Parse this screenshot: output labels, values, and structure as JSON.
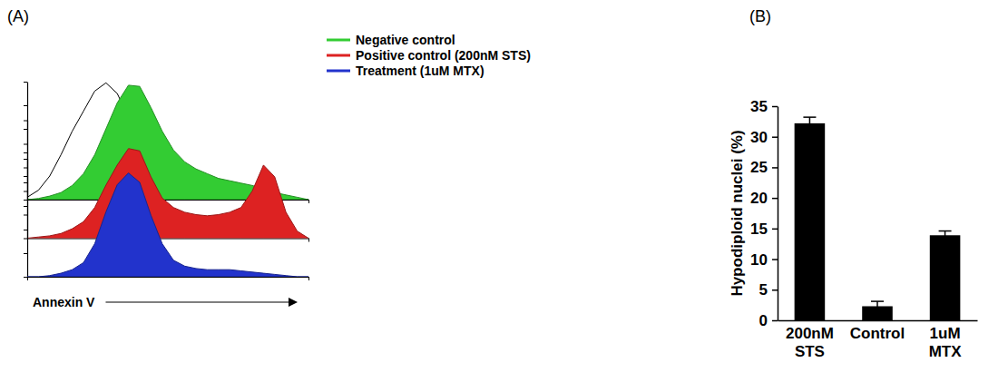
{
  "chart_data": [
    {
      "type": "area",
      "title": "(A)",
      "xlabel": "Annexin V",
      "x": [
        0,
        4,
        8,
        12,
        16,
        20,
        24,
        28,
        32,
        36,
        40,
        44,
        48,
        52,
        56,
        60,
        64,
        68,
        72,
        76,
        80,
        84,
        88,
        92,
        96,
        100
      ],
      "xlim": [
        0,
        100
      ],
      "xticks": [
        0,
        100
      ],
      "ylim": [
        0,
        100
      ],
      "yticks": [
        0,
        20,
        40,
        60,
        80,
        100
      ],
      "tick_labels": false,
      "legend": "right",
      "series": [
        {
          "color": "#ffffff",
          "values": [
            2,
            8,
            20,
            38,
            58,
            75,
            92,
            99,
            90,
            70,
            48,
            30,
            16,
            8,
            4,
            2,
            1,
            0,
            0,
            0,
            0,
            0,
            0,
            0,
            0,
            0
          ]
        },
        {
          "name": "Negative control",
          "color": "#33cc33",
          "values": [
            0,
            1,
            3,
            6,
            12,
            22,
            38,
            60,
            82,
            97,
            96,
            78,
            58,
            42,
            32,
            26,
            22,
            18,
            16,
            14,
            12,
            9,
            6,
            4,
            2,
            0
          ]
        },
        {
          "name": "Positive control (200nM STS)",
          "color": "#dd2222",
          "values": [
            0,
            1,
            2,
            4,
            8,
            14,
            26,
            45,
            62,
            76,
            74,
            52,
            34,
            26,
            22,
            20,
            19,
            20,
            22,
            26,
            40,
            62,
            52,
            22,
            6,
            0
          ]
        },
        {
          "name": "Treatment (1uM MTX)",
          "color": "#2233cc",
          "values": [
            0,
            0,
            1,
            3,
            6,
            12,
            28,
            55,
            78,
            88,
            80,
            52,
            28,
            14,
            9,
            7,
            6,
            6,
            6,
            5,
            4,
            3,
            2,
            1,
            0,
            0
          ]
        }
      ]
    },
    {
      "type": "bar",
      "title": "(B)",
      "ylabel": "Hypodiploid nuclei (%)",
      "categories": [
        "200nM STS",
        "Control",
        "1uM MTX"
      ],
      "values": [
        32.2,
        2.3,
        13.9
      ],
      "errors": [
        1.0,
        0.8,
        0.7
      ],
      "color": "#000000",
      "ylim": [
        0,
        35
      ],
      "yticks": [
        0,
        5,
        10,
        15,
        20,
        25,
        30,
        35
      ]
    }
  ]
}
